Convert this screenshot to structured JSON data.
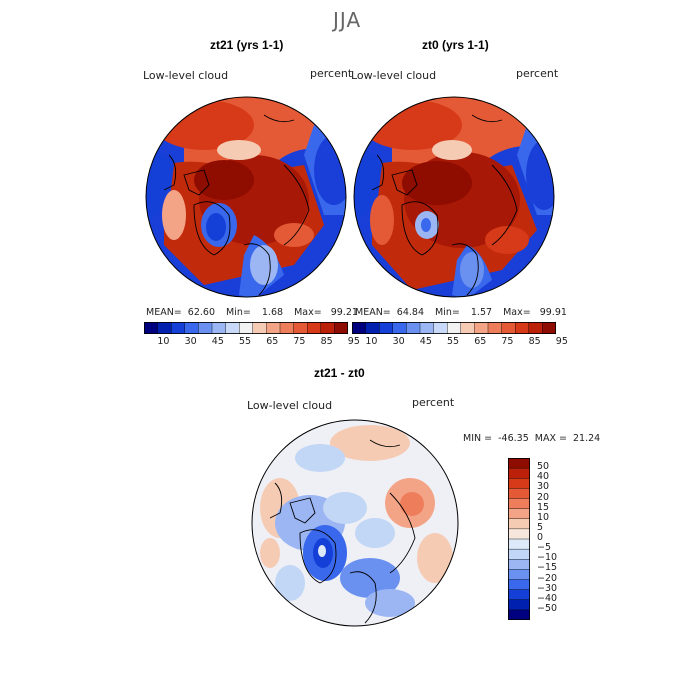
{
  "season": "JJA",
  "panels": [
    {
      "title": "zt21 (yrs 1-1)",
      "field_label": "Low-level cloud",
      "units": "percent",
      "stats": {
        "mean_label": "MEAN=",
        "mean": "62.60",
        "min_label": "Min=",
        "min": "1.68",
        "max_label": "Max=",
        "max": "99.21"
      }
    },
    {
      "title": "zt0 (yrs 1-1)",
      "field_label": "Low-level cloud",
      "units": "percent",
      "stats": {
        "mean_label": "MEAN=",
        "mean": "64.84",
        "min_label": "Min=",
        "min": "1.57",
        "max_label": "Max=",
        "max": "99.91"
      }
    },
    {
      "title": "zt21 - zt0",
      "field_label": "Low-level cloud",
      "units": "percent",
      "stats": {
        "min_label": "MIN =",
        "min": "-46.35",
        "max_label": "MAX =",
        "max": "21.24"
      }
    }
  ],
  "abs_colorbar": {
    "levels": [
      "10",
      "30",
      "45",
      "55",
      "65",
      "75",
      "85",
      "95"
    ],
    "colors": [
      "#00007f",
      "#0020b0",
      "#1440d8",
      "#3a68ec",
      "#6a90f0",
      "#9cb6f4",
      "#c9daf8",
      "#f2f2f2",
      "#f6cbb4",
      "#f4a486",
      "#ee7d5c",
      "#e55a36",
      "#d63a18",
      "#bb2008",
      "#8f0c00"
    ]
  },
  "diff_colorbar": {
    "levels": [
      "50",
      "40",
      "30",
      "20",
      "15",
      "10",
      "5",
      "0",
      "−5",
      "−10",
      "−15",
      "−20",
      "−30",
      "−40",
      "−50"
    ],
    "colors": [
      "#8f0c00",
      "#bb2008",
      "#d63a18",
      "#e55a36",
      "#ee7d5c",
      "#f4a486",
      "#f6cbb4",
      "#f7e6dc",
      "#dde8f8",
      "#c2d6f6",
      "#9cb6f4",
      "#6a90f0",
      "#3a68ec",
      "#1440d8",
      "#0020b0",
      "#00007f"
    ]
  },
  "chart_data": [
    {
      "type": "heatmap",
      "title": "zt21 (yrs 1-1)",
      "subtitle": "Low-level cloud",
      "units": "percent",
      "projection": "north-polar-stereographic",
      "mean": 62.6,
      "min": 1.68,
      "max": 99.21,
      "contour_levels": [
        10,
        30,
        45,
        55,
        65,
        75,
        85,
        95
      ]
    },
    {
      "type": "heatmap",
      "title": "zt0 (yrs 1-1)",
      "subtitle": "Low-level cloud",
      "units": "percent",
      "projection": "north-polar-stereographic",
      "mean": 64.84,
      "min": 1.57,
      "max": 99.91,
      "contour_levels": [
        10,
        30,
        45,
        55,
        65,
        75,
        85,
        95
      ]
    },
    {
      "type": "heatmap",
      "title": "zt21 - zt0",
      "subtitle": "Low-level cloud",
      "units": "percent",
      "projection": "north-polar-stereographic",
      "min": -46.35,
      "max": 21.24,
      "contour_levels": [
        -50,
        -40,
        -30,
        -20,
        -15,
        -10,
        -5,
        0,
        5,
        10,
        15,
        20,
        30,
        40,
        50
      ]
    }
  ]
}
